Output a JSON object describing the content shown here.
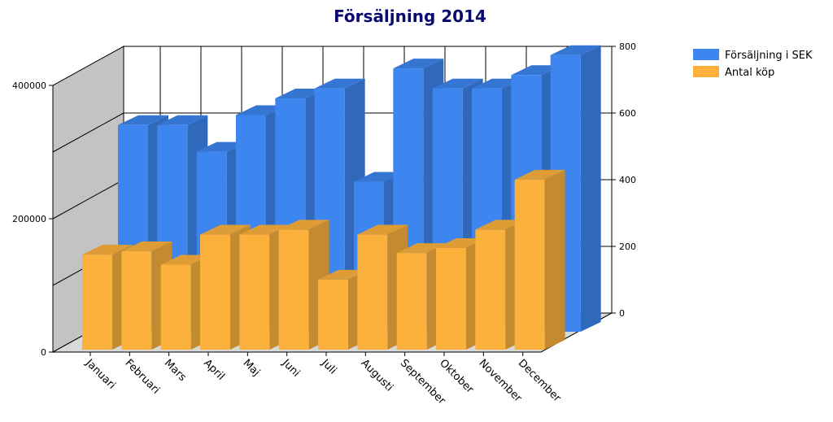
{
  "chart_data": {
    "type": "bar",
    "title": "Försäljning 2014",
    "categories": [
      "Januari",
      "Februari",
      "Mars",
      "April",
      "Maj",
      "Juni",
      "Juli",
      "Augusti",
      "September",
      "Oktober",
      "November",
      "December"
    ],
    "series": [
      {
        "name": "Försäljning i SEK",
        "axis": "left",
        "color": "#3d86f0",
        "values": [
          310000,
          310000,
          270000,
          325000,
          350000,
          365000,
          225000,
          395000,
          365000,
          365000,
          385000,
          415000
        ]
      },
      {
        "name": "Antal köp",
        "axis": "right",
        "color": "#fbb13c",
        "values": [
          285,
          295,
          255,
          345,
          345,
          360,
          210,
          345,
          290,
          305,
          360,
          510
        ]
      }
    ],
    "y_left": {
      "min": 0,
      "max": 400000,
      "ticks": [
        "0",
        "200000",
        "400000"
      ]
    },
    "y_right": {
      "min": 0,
      "max": 800,
      "ticks": [
        "0",
        "200",
        "400",
        "600",
        "800"
      ]
    },
    "legend_position": "top-right",
    "grid": true
  }
}
